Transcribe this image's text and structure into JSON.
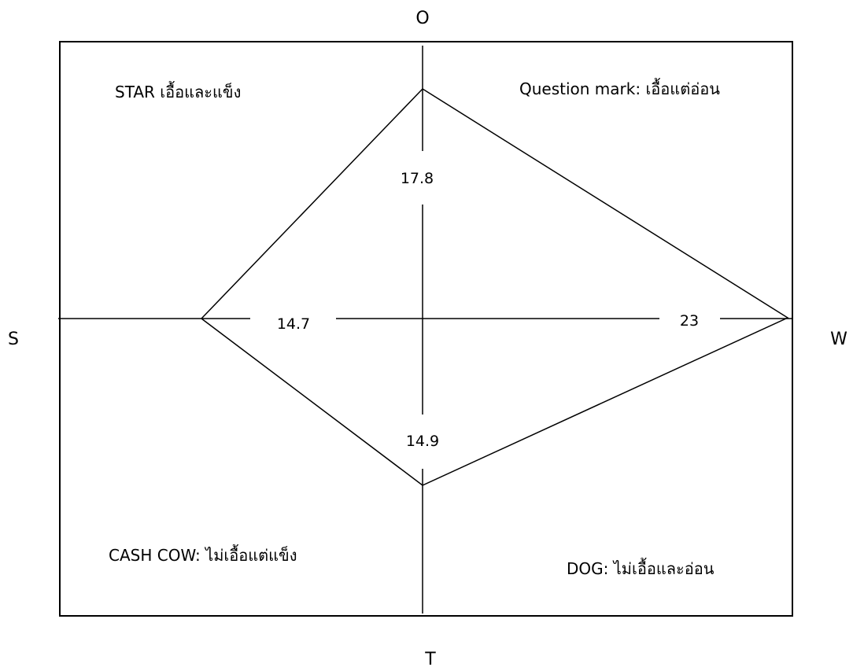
{
  "axes": {
    "top": "O",
    "bottom": "T",
    "left": "S",
    "right": "W"
  },
  "quadrants": {
    "top_left": "STAR เอื้อและแข็ง",
    "top_right": "Question mark: เอื้อแต่อ่อน",
    "bottom_left": "CASH COW: ไม่เอื้อแต่แข็ง",
    "bottom_right": "DOG: ไม่เอื้อและอ่อน"
  },
  "values": {
    "O": "17.8",
    "S": "14.7",
    "W": "23",
    "T": "14.9"
  },
  "colors": {
    "line": "#000000",
    "background": "#ffffff"
  }
}
